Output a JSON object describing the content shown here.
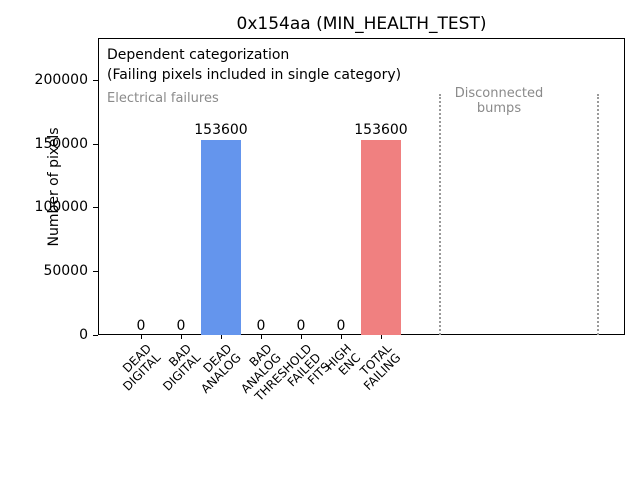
{
  "chart_data": {
    "type": "bar",
    "title": "0x154aa (MIN_HEALTH_TEST)",
    "xlabel": "",
    "ylabel": "Number of pixels",
    "ylim": [
      0,
      233000
    ],
    "yticks": [
      0,
      50000,
      100000,
      150000,
      200000
    ],
    "grid": false,
    "legend": null,
    "categories": [
      "DEAD\nDIGITAL",
      "BAD\nDIGITAL",
      "DEAD\nANALOG",
      "BAD\nANALOG",
      "THRESHOLD\nFAILED\nFITS",
      "HIGH\nENC",
      "TOTAL\nFAILING"
    ],
    "values": [
      0,
      0,
      153600,
      0,
      0,
      0,
      153600
    ],
    "value_labels": [
      "0",
      "0",
      "153600",
      "0",
      "0",
      "0",
      "153600"
    ],
    "bar_colors": [
      "#6495ed",
      "#6495ed",
      "#6495ed",
      "#6495ed",
      "#6495ed",
      "#6495ed",
      "#f08080"
    ],
    "annotations": {
      "dependent_line1": "Dependent categorization",
      "dependent_line2": "(Failing pixels included in single category)",
      "electrical_section_label": "Electrical failures",
      "disconnected_section_label": "Disconnected\nbumps"
    },
    "colors": {
      "electrical_bar": "#6495ed",
      "total_bar": "#f08080",
      "section_text": "#8a8a8a",
      "divider": "#9a9a9a"
    }
  }
}
